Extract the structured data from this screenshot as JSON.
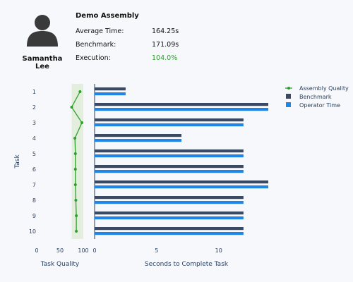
{
  "header": {
    "user_name": "Samantha Lee",
    "assembly_title": "Demo Assembly",
    "stats": {
      "average_time_label": "Average Time:",
      "average_time_value": "164.25s",
      "benchmark_label": "Benchmark:",
      "benchmark_value": "171.09s",
      "execution_label": "Execution:",
      "execution_value": "104.0%"
    },
    "execution_color": "#2ca02c",
    "avatar_icon": "person-silhouette-icon"
  },
  "chart_data": [
    {
      "type": "line",
      "xlabel": "Task Quality",
      "ylabel": "Task",
      "xlim": [
        0,
        100
      ],
      "xticks": [
        0,
        50,
        100
      ],
      "categories": [
        "1",
        "2",
        "3",
        "4",
        "5",
        "6",
        "7",
        "8",
        "9",
        "10"
      ],
      "highlight_band": [
        75,
        100
      ],
      "series": [
        {
          "name": "Assembly Quality",
          "color": "#2ca02c",
          "values": [
            93,
            75,
            97,
            82,
            83,
            83,
            83,
            84,
            85,
            85
          ]
        }
      ]
    },
    {
      "type": "bar",
      "orientation": "horizontal",
      "xlabel": "Seconds to Complete Task",
      "xlim": [
        0,
        14
      ],
      "xticks": [
        0,
        5,
        10
      ],
      "categories": [
        "1",
        "2",
        "3",
        "4",
        "5",
        "6",
        "7",
        "8",
        "9",
        "10"
      ],
      "series": [
        {
          "name": "Benchmark",
          "color": "#3b4a63",
          "values": [
            2.5,
            14,
            12,
            7,
            12,
            12,
            14,
            12,
            12,
            12
          ]
        },
        {
          "name": "Operator Time",
          "color": "#1f86e5",
          "values": [
            2.5,
            14,
            12,
            7,
            12,
            12,
            14,
            12,
            12,
            12
          ]
        }
      ],
      "legend": {
        "position": "top-right"
      }
    }
  ]
}
